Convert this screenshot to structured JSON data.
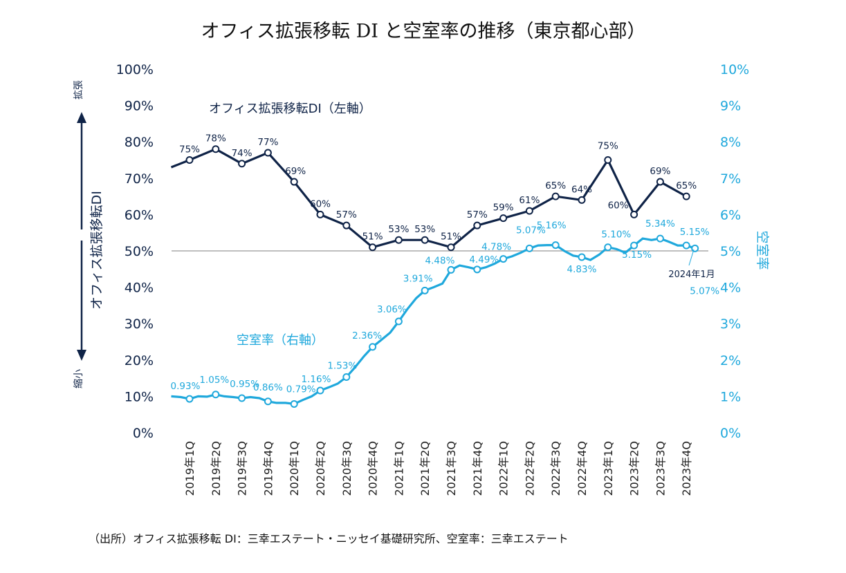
{
  "chart_data": {
    "type": "line",
    "title": "オフィス拡張移転 DI と空室率の推移（東京都心部）",
    "categories": [
      "2019年1Q",
      "2019年2Q",
      "2019年3Q",
      "2019年4Q",
      "2020年1Q",
      "2020年2Q",
      "2020年3Q",
      "2020年4Q",
      "2021年1Q",
      "2021年2Q",
      "2021年3Q",
      "2021年4Q",
      "2022年1Q",
      "2022年2Q",
      "2022年3Q",
      "2022年4Q",
      "2023年1Q",
      "2023年2Q",
      "2023年3Q",
      "2023年4Q"
    ],
    "y_left": {
      "label": "オフィス拡張移転DI",
      "range": [
        0,
        100
      ],
      "ticks": [
        "0%",
        "10%",
        "20%",
        "30%",
        "40%",
        "50%",
        "60%",
        "70%",
        "80%",
        "90%",
        "100%"
      ],
      "arrow_up_label": "拡張",
      "arrow_down_label": "縮小"
    },
    "y_right": {
      "label": "空室率",
      "range": [
        0,
        10
      ],
      "ticks": [
        "0%",
        "1%",
        "2%",
        "3%",
        "4%",
        "5%",
        "6%",
        "7%",
        "8%",
        "9%",
        "10%"
      ]
    },
    "reference_line": 50,
    "series": [
      {
        "name": "オフィス拡張移転DI（左軸）",
        "axis": "left",
        "color": "#0f2347",
        "x": [
          -0.7,
          0,
          1,
          2,
          3,
          4,
          5,
          6,
          7,
          8,
          9,
          10,
          11,
          12,
          13,
          14,
          15,
          16,
          17,
          18,
          19
        ],
        "values": [
          73,
          75,
          78,
          74,
          77,
          69,
          60,
          57,
          51,
          53,
          53,
          51,
          57,
          59,
          61,
          65,
          64,
          75,
          60,
          69,
          65
        ],
        "labels": [
          "",
          "75%",
          "78%",
          "74%",
          "77%",
          "69%",
          "60%",
          "57%",
          "51%",
          "53%",
          "53%",
          "51%",
          "57%",
          "59%",
          "61%",
          "65%",
          "64%",
          "75%",
          "60%",
          "69%",
          "65%"
        ]
      },
      {
        "name": "空室率（右軸）",
        "axis": "right",
        "color": "#1fa8dc",
        "monthly_x": [
          -0.7,
          -0.33,
          0,
          0.33,
          0.67,
          1,
          1.33,
          1.67,
          2,
          2.33,
          2.67,
          3,
          3.33,
          3.67,
          4,
          4.33,
          4.67,
          5,
          5.33,
          5.67,
          6,
          6.33,
          6.67,
          7,
          7.33,
          7.67,
          8,
          8.33,
          8.67,
          9,
          9.33,
          9.67,
          10,
          10.33,
          10.67,
          11,
          11.33,
          11.67,
          12,
          12.33,
          12.67,
          13,
          13.33,
          13.67,
          14,
          14.33,
          14.67,
          15,
          15.33,
          15.67,
          16,
          16.33,
          16.67,
          17,
          17.33,
          17.67,
          18,
          18.33,
          18.67,
          19,
          19.33
        ],
        "monthly_values": [
          1.0,
          0.98,
          0.93,
          1.0,
          0.99,
          1.05,
          1.0,
          0.98,
          0.95,
          0.98,
          0.95,
          0.86,
          0.82,
          0.82,
          0.79,
          0.9,
          1.0,
          1.16,
          1.25,
          1.35,
          1.53,
          1.8,
          2.1,
          2.36,
          2.55,
          2.75,
          3.06,
          3.4,
          3.7,
          3.91,
          4.0,
          4.1,
          4.48,
          4.6,
          4.55,
          4.49,
          4.55,
          4.65,
          4.78,
          4.85,
          4.95,
          5.07,
          5.15,
          5.16,
          5.16,
          5.0,
          4.87,
          4.83,
          4.75,
          4.9,
          5.1,
          5.05,
          4.95,
          5.15,
          5.34,
          5.3,
          5.34,
          5.25,
          5.15,
          5.15,
          5.07
        ],
        "markers_x": [
          0,
          1,
          2,
          3,
          4,
          5,
          6,
          7,
          8,
          9,
          10,
          11,
          12,
          13,
          14,
          15,
          16,
          17,
          18,
          19,
          19.33
        ],
        "markers_values": [
          0.93,
          1.05,
          0.95,
          0.86,
          0.79,
          1.16,
          1.53,
          2.36,
          3.06,
          3.91,
          4.48,
          4.49,
          4.78,
          5.07,
          5.16,
          4.83,
          5.1,
          5.15,
          5.34,
          5.15,
          5.07
        ],
        "labels": [
          "0.93%",
          "1.05%",
          "0.95%",
          "0.86%",
          "0.79%",
          "1.16%",
          "1.53%",
          "2.36%",
          "3.06%",
          "3.91%",
          "4.48%",
          "4.49%",
          "4.78%",
          "5.07%",
          "5.16%",
          "4.83%",
          "5.10%",
          "5.15%",
          "5.34%",
          "5.15%",
          "5.07%"
        ]
      }
    ],
    "annotations": {
      "di_series_label": "オフィス拡張移転DI（左軸）",
      "vr_series_label": "空室率（右軸）",
      "latest_month": "2024年1月"
    },
    "source": "（出所）オフィス拡張移転 DI：三幸エステート・ニッセイ基礎研究所、空室率：三幸エステート"
  }
}
